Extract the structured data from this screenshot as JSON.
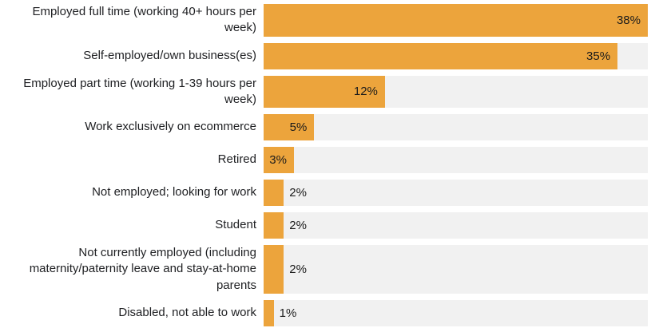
{
  "chart_data": {
    "type": "bar",
    "orientation": "horizontal",
    "title": "",
    "xlabel": "",
    "ylabel": "",
    "max_value": 38,
    "bar_color": "#eca43c",
    "track_color": "#f1f1f1",
    "value_label_color": "#1b1b1b",
    "categories": [
      "Employed full time (working 40+ hours per week)",
      "Self-employed/own business(es)",
      "Employed part time (working 1-39 hours per week)",
      "Work exclusively on ecommerce",
      "Retired",
      "Not employed; looking for work",
      "Student",
      "Not currently employed (including maternity/paternity leave and stay-at-home parents",
      "Disabled, not able to work"
    ],
    "values": [
      38,
      35,
      12,
      5,
      3,
      2,
      2,
      2,
      1
    ],
    "value_labels": [
      "38%",
      "35%",
      "12%",
      "5%",
      "3%",
      "2%",
      "2%",
      "2%",
      "1%"
    ],
    "label_inside": [
      true,
      true,
      true,
      true,
      true,
      false,
      false,
      false,
      false
    ]
  }
}
